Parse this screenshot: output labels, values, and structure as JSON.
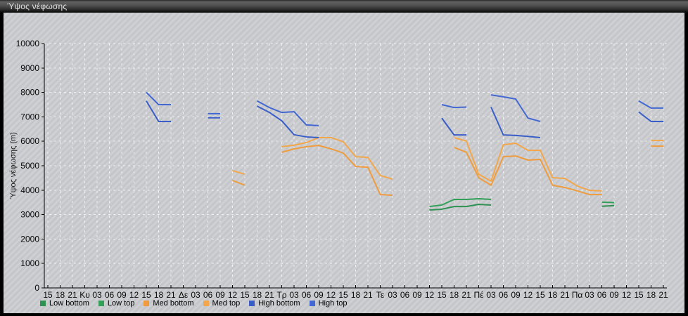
{
  "window": {
    "title": "Ύψος νέφωσης"
  },
  "chart_data": {
    "type": "line",
    "title": "Ύψος νέφωσης",
    "xlabel": "",
    "ylabel": "Ύψος νέφωσης (m)",
    "ylim": [
      0,
      10000
    ],
    "y_ticks": [
      0,
      1000,
      2000,
      3000,
      4000,
      5000,
      6000,
      7000,
      8000,
      9000,
      10000
    ],
    "grid": true,
    "legend_position": "bottom",
    "x_tick_labels": [
      "15",
      "18",
      "21",
      "Κυ",
      "03",
      "06",
      "09",
      "12",
      "15",
      "18",
      "21",
      "Δε",
      "03",
      "06",
      "09",
      "12",
      "15",
      "18",
      "21",
      "Τρ",
      "03",
      "06",
      "09",
      "12",
      "15",
      "18",
      "21",
      "Τε",
      "03",
      "06",
      "09",
      "12",
      "15",
      "18",
      "21",
      "Πέ",
      "03",
      "06",
      "09",
      "12",
      "15",
      "18",
      "21",
      "Πα",
      "03",
      "06",
      "09",
      "12",
      "15",
      "18",
      "21"
    ],
    "series": [
      {
        "name": "Low bottom",
        "color": "#2f9152",
        "segments": [
          {
            "start_index": 31,
            "values": [
              3190,
              3220,
              3330,
              3330,
              3420,
              3390
            ]
          },
          {
            "start_index": 45,
            "values": [
              3340,
              3370
            ]
          }
        ]
      },
      {
        "name": "Low top",
        "color": "#33a05a",
        "segments": [
          {
            "start_index": 31,
            "values": [
              3330,
              3390,
              3620,
              3620,
              3650,
              3620
            ]
          },
          {
            "start_index": 45,
            "values": [
              3510,
              3490
            ]
          }
        ]
      },
      {
        "name": "Med bottom",
        "color": "#ee9c3e",
        "segments": [
          {
            "start_index": 15,
            "values": [
              4400,
              4200
            ]
          },
          {
            "start_index": 19,
            "values": [
              5550,
              5690,
              5780,
              5830,
              5690,
              5520,
              4970,
              4940,
              3820,
              3790
            ]
          },
          {
            "start_index": 33,
            "values": [
              5750,
              5550,
              4510,
              4200,
              5370,
              5400,
              5230,
              5260,
              4200,
              4110,
              3970,
              3820,
              3820
            ]
          },
          {
            "start_index": 49,
            "values": [
              5800,
              5800
            ]
          }
        ]
      },
      {
        "name": "Med top",
        "color": "#f3a74b",
        "segments": [
          {
            "start_index": 15,
            "values": [
              4800,
              4650
            ]
          },
          {
            "start_index": 19,
            "values": [
              5780,
              5840,
              5950,
              6150,
              6150,
              5980,
              5370,
              5340,
              4600,
              4450
            ]
          },
          {
            "start_index": 33,
            "values": [
              6150,
              6010,
              4650,
              4370,
              5860,
              5920,
              5630,
              5630,
              4510,
              4480,
              4170,
              3990,
              3970
            ]
          },
          {
            "start_index": 49,
            "values": [
              6030,
              6030
            ]
          }
        ]
      },
      {
        "name": "High bottom",
        "color": "#3a5ec7",
        "segments": [
          {
            "start_index": 8,
            "values": [
              7650,
              6810,
              6810
            ]
          },
          {
            "start_index": 13,
            "values": [
              6960,
              6960
            ]
          },
          {
            "start_index": 17,
            "values": [
              7440,
              7180,
              6840,
              6270,
              6180,
              6150
            ]
          },
          {
            "start_index": 32,
            "values": [
              6950,
              6260,
              6260
            ]
          },
          {
            "start_index": 36,
            "values": [
              7400,
              6260,
              6240,
              6200,
              6150
            ]
          },
          {
            "start_index": 48,
            "values": [
              7200,
              6810,
              6810
            ]
          }
        ]
      },
      {
        "name": "High top",
        "color": "#4368d1",
        "segments": [
          {
            "start_index": 8,
            "values": [
              8000,
              7500,
              7500
            ]
          },
          {
            "start_index": 13,
            "values": [
              7130,
              7130
            ]
          },
          {
            "start_index": 17,
            "values": [
              7650,
              7380,
              7180,
              7210,
              6670,
              6640
            ]
          },
          {
            "start_index": 32,
            "values": [
              7500,
              7380,
              7400
            ]
          },
          {
            "start_index": 36,
            "values": [
              7900,
              7820,
              7730,
              6950,
              6810
            ]
          },
          {
            "start_index": 48,
            "values": [
              7650,
              7360,
              7360
            ]
          }
        ]
      }
    ]
  }
}
